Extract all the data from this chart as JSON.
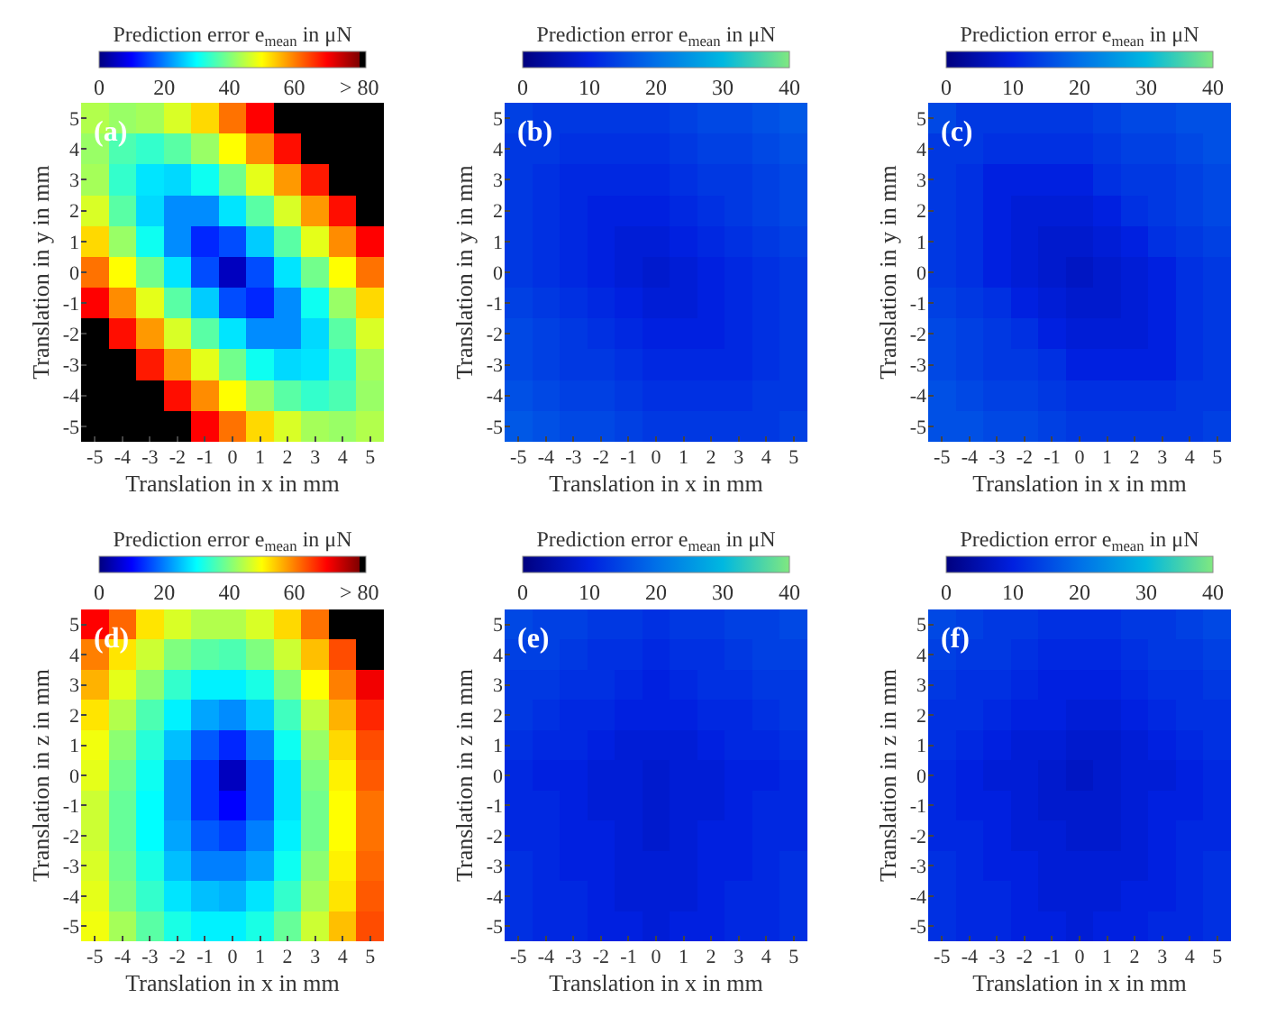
{
  "chart_data": [
    {
      "type": "heatmap",
      "clabel": "Prediction error e$_{mean}$ in μN",
      "xlabel": "Translation in x in mm",
      "ylabel": "Translation in y in mm",
      "annotations": [
        "(a)"
      ],
      "categories": [
        "-5",
        "-4",
        "-3",
        "-2",
        "-1",
        "0",
        "1",
        "2",
        "3",
        "4",
        "5"
      ],
      "y_categories": [
        "5",
        "4",
        "3",
        "2",
        "1",
        "0",
        "-1",
        "-2",
        "-3",
        "-4",
        "-5"
      ],
      "clim": [
        0,
        82
      ],
      "cticks": [
        0,
        20,
        40,
        60,
        {
          "value": 80,
          "label": "> 80"
        }
      ],
      "cells": [
        [
          44,
          42,
          43,
          47,
          53,
          61,
          70,
          82,
          82,
          82,
          82
        ],
        [
          42,
          36,
          34,
          37,
          42,
          50,
          59,
          69,
          82,
          82,
          82
        ],
        [
          43,
          34,
          28,
          27,
          31,
          39,
          48,
          58,
          68,
          82,
          82
        ],
        [
          47,
          37,
          27,
          21,
          21,
          28,
          37,
          47,
          58,
          69,
          82
        ],
        [
          53,
          42,
          31,
          21,
          13,
          16,
          26,
          37,
          48,
          59,
          70
        ],
        [
          61,
          50,
          39,
          28,
          16,
          5,
          16,
          28,
          39,
          50,
          61
        ],
        [
          70,
          59,
          48,
          37,
          26,
          16,
          13,
          21,
          31,
          42,
          53
        ],
        [
          82,
          69,
          58,
          47,
          37,
          28,
          21,
          21,
          27,
          37,
          47
        ],
        [
          82,
          82,
          68,
          58,
          48,
          39,
          31,
          27,
          28,
          34,
          43
        ],
        [
          82,
          82,
          82,
          69,
          59,
          50,
          42,
          37,
          34,
          36,
          42
        ],
        [
          82,
          82,
          82,
          82,
          70,
          61,
          53,
          47,
          43,
          42,
          44
        ]
      ]
    },
    {
      "type": "heatmap",
      "clabel": "Prediction error e$_{mean}$ in μN",
      "xlabel": "Translation in x in mm",
      "ylabel": "Translation in y in mm",
      "annotations": [
        "(b)"
      ],
      "categories": [
        "-5",
        "-4",
        "-3",
        "-2",
        "-1",
        "0",
        "1",
        "2",
        "3",
        "4",
        "5"
      ],
      "y_categories": [
        "5",
        "4",
        "3",
        "2",
        "1",
        "0",
        "-1",
        "-2",
        "-3",
        "-4",
        "-5"
      ],
      "clim": [
        0,
        40
      ],
      "cticks": [
        0,
        10,
        20,
        30,
        40
      ],
      "cells": [
        [
          14,
          13,
          13,
          13,
          13,
          13,
          14,
          15,
          15,
          16,
          17
        ],
        [
          13,
          13,
          12,
          12,
          12,
          12,
          13,
          14,
          14,
          15,
          16
        ],
        [
          13,
          12,
          11,
          11,
          11,
          11,
          12,
          13,
          13,
          14,
          15
        ],
        [
          13,
          12,
          11,
          10,
          10,
          10,
          11,
          12,
          13,
          14,
          15
        ],
        [
          13,
          12,
          11,
          10,
          9,
          9,
          10,
          11,
          12,
          13,
          14
        ],
        [
          13,
          12,
          11,
          10,
          9,
          8,
          9,
          10,
          11,
          12,
          13
        ],
        [
          14,
          13,
          12,
          11,
          10,
          9,
          9,
          10,
          11,
          12,
          13
        ],
        [
          15,
          14,
          13,
          12,
          11,
          10,
          10,
          10,
          11,
          12,
          13
        ],
        [
          15,
          14,
          13,
          13,
          12,
          11,
          11,
          11,
          11,
          12,
          13
        ],
        [
          16,
          15,
          14,
          14,
          13,
          12,
          12,
          12,
          12,
          13,
          13
        ],
        [
          17,
          16,
          15,
          15,
          14,
          13,
          13,
          13,
          13,
          13,
          14
        ]
      ]
    },
    {
      "type": "heatmap",
      "clabel": "Prediction error e$_{mean}$ in μN",
      "xlabel": "Translation in x in mm",
      "ylabel": "Translation in y in mm",
      "annotations": [
        "(c)"
      ],
      "categories": [
        "-5",
        "-4",
        "-3",
        "-2",
        "-1",
        "0",
        "1",
        "2",
        "3",
        "4",
        "5"
      ],
      "y_categories": [
        "5",
        "4",
        "3",
        "2",
        "1",
        "0",
        "-1",
        "-2",
        "-3",
        "-4",
        "-5"
      ],
      "clim": [
        0,
        40
      ],
      "cticks": [
        0,
        10,
        20,
        30,
        40
      ],
      "cells": [
        [
          15,
          13,
          13,
          13,
          13,
          13,
          14,
          15,
          15,
          16,
          16
        ],
        [
          13,
          13,
          12,
          12,
          12,
          12,
          13,
          14,
          14,
          15,
          16
        ],
        [
          13,
          12,
          10,
          10,
          10,
          10,
          12,
          13,
          13,
          14,
          15
        ],
        [
          13,
          12,
          10,
          9,
          9,
          9,
          10,
          12,
          13,
          14,
          15
        ],
        [
          13,
          12,
          10,
          9,
          8,
          8,
          9,
          10,
          12,
          13,
          14
        ],
        [
          13,
          12,
          10,
          9,
          8,
          7,
          8,
          9,
          10,
          12,
          13
        ],
        [
          14,
          13,
          12,
          10,
          9,
          8,
          8,
          9,
          10,
          12,
          13
        ],
        [
          15,
          14,
          13,
          12,
          10,
          9,
          9,
          9,
          10,
          12,
          13
        ],
        [
          15,
          14,
          13,
          13,
          12,
          10,
          10,
          10,
          10,
          12,
          13
        ],
        [
          16,
          15,
          14,
          14,
          13,
          12,
          12,
          12,
          12,
          13,
          13
        ],
        [
          16,
          16,
          15,
          15,
          14,
          13,
          13,
          13,
          13,
          13,
          14
        ]
      ]
    },
    {
      "type": "heatmap",
      "clabel": "Prediction error e$_{mean}$ in μN",
      "xlabel": "Translation in x in mm",
      "ylabel": "Translation in z in mm",
      "annotations": [
        "(d)"
      ],
      "categories": [
        "-5",
        "-4",
        "-3",
        "-2",
        "-1",
        "0",
        "1",
        "2",
        "3",
        "4",
        "5"
      ],
      "y_categories": [
        "5",
        "4",
        "3",
        "2",
        "1",
        "0",
        "-1",
        "-2",
        "-3",
        "-4",
        "-5"
      ],
      "clim": [
        0,
        82
      ],
      "cticks": [
        0,
        20,
        40,
        60,
        {
          "value": 80,
          "label": "> 80"
        }
      ],
      "cells": [
        [
          70,
          62,
          52,
          47,
          44,
          44,
          47,
          53,
          61,
          82,
          82
        ],
        [
          60,
          52,
          46,
          40,
          37,
          36,
          40,
          46,
          55,
          64,
          82
        ],
        [
          56,
          48,
          41,
          34,
          29,
          29,
          32,
          40,
          50,
          60,
          71
        ],
        [
          52,
          44,
          36,
          29,
          23,
          21,
          26,
          35,
          45,
          56,
          67
        ],
        [
          49,
          41,
          33,
          25,
          17,
          13,
          20,
          31,
          42,
          53,
          64
        ],
        [
          48,
          39,
          31,
          22,
          14,
          5,
          17,
          28,
          40,
          51,
          63
        ],
        [
          46,
          38,
          30,
          22,
          14,
          10,
          17,
          28,
          39,
          50,
          61
        ],
        [
          46,
          38,
          30,
          23,
          17,
          15,
          20,
          29,
          39,
          50,
          61
        ],
        [
          47,
          39,
          32,
          25,
          20,
          20,
          23,
          31,
          41,
          51,
          62
        ],
        [
          48,
          40,
          34,
          28,
          25,
          24,
          28,
          34,
          43,
          52,
          63
        ],
        [
          49,
          43,
          37,
          32,
          29,
          29,
          32,
          38,
          46,
          55,
          64
        ]
      ]
    },
    {
      "type": "heatmap",
      "clabel": "Prediction error e$_{mean}$ in μN",
      "xlabel": "Translation in x in mm",
      "ylabel": "Translation in z in mm",
      "annotations": [
        "(e)"
      ],
      "categories": [
        "-5",
        "-4",
        "-3",
        "-2",
        "-1",
        "0",
        "1",
        "2",
        "3",
        "4",
        "5"
      ],
      "y_categories": [
        "5",
        "4",
        "3",
        "2",
        "1",
        "0",
        "-1",
        "-2",
        "-3",
        "-4",
        "-5"
      ],
      "clim": [
        0,
        40
      ],
      "cticks": [
        0,
        10,
        20,
        30,
        40
      ],
      "cells": [
        [
          15,
          14,
          14,
          13,
          13,
          12,
          13,
          13,
          14,
          14,
          15
        ],
        [
          14,
          14,
          13,
          12,
          12,
          11,
          12,
          12,
          13,
          14,
          14
        ],
        [
          13,
          13,
          12,
          12,
          11,
          10,
          11,
          12,
          12,
          13,
          13
        ],
        [
          13,
          12,
          11,
          11,
          10,
          10,
          10,
          11,
          11,
          12,
          13
        ],
        [
          12,
          11,
          11,
          10,
          9,
          9,
          9,
          10,
          11,
          11,
          12
        ],
        [
          11,
          10,
          10,
          9,
          9,
          8,
          9,
          9,
          10,
          10,
          11
        ],
        [
          11,
          11,
          10,
          9,
          9,
          8,
          9,
          9,
          10,
          11,
          11
        ],
        [
          11,
          11,
          10,
          10,
          9,
          8,
          9,
          10,
          10,
          11,
          11
        ],
        [
          12,
          11,
          10,
          10,
          9,
          9,
          9,
          10,
          10,
          11,
          12
        ],
        [
          12,
          11,
          11,
          10,
          9,
          9,
          9,
          10,
          11,
          11,
          12
        ],
        [
          12,
          11,
          11,
          10,
          10,
          9,
          10,
          10,
          11,
          11,
          12
        ]
      ]
    },
    {
      "type": "heatmap",
      "clabel": "Prediction error e$_{mean}$ in μN",
      "xlabel": "Translation in x in mm",
      "ylabel": "Translation in z in mm",
      "annotations": [
        "(f)"
      ],
      "categories": [
        "-5",
        "-4",
        "-3",
        "-2",
        "-1",
        "0",
        "1",
        "2",
        "3",
        "4",
        "5"
      ],
      "y_categories": [
        "5",
        "4",
        "3",
        "2",
        "1",
        "0",
        "-1",
        "-2",
        "-3",
        "-4",
        "-5"
      ],
      "clim": [
        0,
        40
      ],
      "cticks": [
        0,
        10,
        20,
        30,
        40
      ],
      "cells": [
        [
          15,
          14,
          13,
          13,
          12,
          12,
          12,
          13,
          13,
          14,
          15
        ],
        [
          14,
          13,
          13,
          12,
          11,
          11,
          11,
          12,
          13,
          13,
          14
        ],
        [
          13,
          12,
          12,
          11,
          10,
          10,
          10,
          11,
          12,
          12,
          13
        ],
        [
          12,
          12,
          11,
          10,
          10,
          9,
          9,
          10,
          11,
          12,
          12
        ],
        [
          12,
          11,
          10,
          9,
          9,
          8,
          8,
          9,
          10,
          11,
          12
        ],
        [
          11,
          10,
          9,
          9,
          8,
          7,
          8,
          9,
          9,
          10,
          11
        ],
        [
          11,
          10,
          10,
          9,
          8,
          8,
          8,
          9,
          10,
          10,
          11
        ],
        [
          11,
          11,
          10,
          9,
          9,
          8,
          8,
          9,
          10,
          11,
          11
        ],
        [
          12,
          11,
          10,
          10,
          9,
          9,
          9,
          9,
          10,
          11,
          12
        ],
        [
          12,
          11,
          11,
          10,
          9,
          9,
          9,
          10,
          10,
          11,
          12
        ],
        [
          12,
          11,
          11,
          10,
          10,
          9,
          10,
          10,
          11,
          11,
          12
        ]
      ]
    }
  ]
}
